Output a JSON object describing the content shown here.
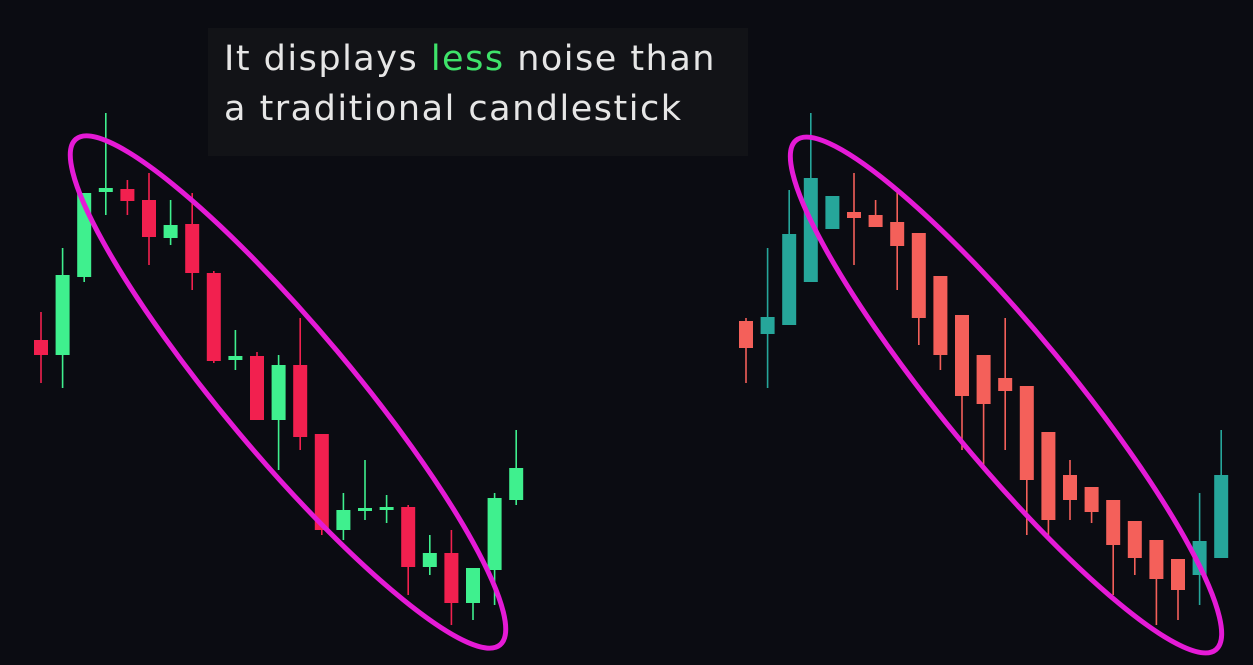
{
  "annotation": [
    "It displays",
    "less",
    "noise than",
    "a traditional candlestick"
  ],
  "chart_data": [
    {
      "type": "candlestick",
      "up_color": "#3ff08e",
      "down_color": "#f2204f",
      "ylim": [
        0,
        600
      ],
      "open": [
        300,
        285,
        363,
        448,
        451,
        440,
        402,
        416,
        367,
        280,
        284,
        220,
        275,
        206,
        110,
        130,
        131,
        133,
        73,
        87,
        37,
        70,
        140
      ],
      "high": [
        328,
        392,
        447,
        527,
        460,
        467,
        440,
        447,
        369,
        310,
        288,
        285,
        322,
        206,
        147,
        180,
        145,
        135,
        105,
        110,
        72,
        147,
        210
      ],
      "low": [
        257,
        252,
        358,
        425,
        425,
        375,
        395,
        350,
        277,
        270,
        220,
        170,
        190,
        105,
        100,
        120,
        117,
        45,
        65,
        15,
        20,
        35,
        135
      ],
      "close": [
        285,
        365,
        447,
        452,
        439,
        403,
        415,
        367,
        279,
        284,
        220,
        275,
        203,
        110,
        130,
        132,
        133,
        73,
        87,
        37,
        72,
        142,
        172
      ]
    },
    {
      "type": "candlestick",
      "up_color": "#26a69a",
      "down_color": "#f4605a",
      "ylim": [
        0,
        600
      ],
      "open": [
        319,
        306,
        315,
        358,
        411,
        428,
        425,
        418,
        407,
        364,
        325,
        285,
        262,
        254,
        208,
        165,
        153,
        140,
        119,
        100,
        81,
        65,
        82
      ],
      "high": [
        322,
        392,
        450,
        527,
        444,
        467,
        440,
        450,
        407,
        364,
        325,
        285,
        322,
        254,
        208,
        180,
        153,
        140,
        119,
        100,
        81,
        147,
        210
      ],
      "low": [
        257,
        252,
        315,
        358,
        411,
        375,
        413,
        350,
        295,
        270,
        190,
        170,
        190,
        105,
        100,
        120,
        117,
        45,
        65,
        15,
        20,
        35,
        82
      ],
      "close": [
        292,
        323,
        406,
        462,
        444,
        422,
        413,
        394,
        322,
        285,
        244,
        236,
        249,
        160,
        120,
        140,
        128,
        95,
        82,
        61,
        50,
        99,
        165
      ]
    }
  ]
}
